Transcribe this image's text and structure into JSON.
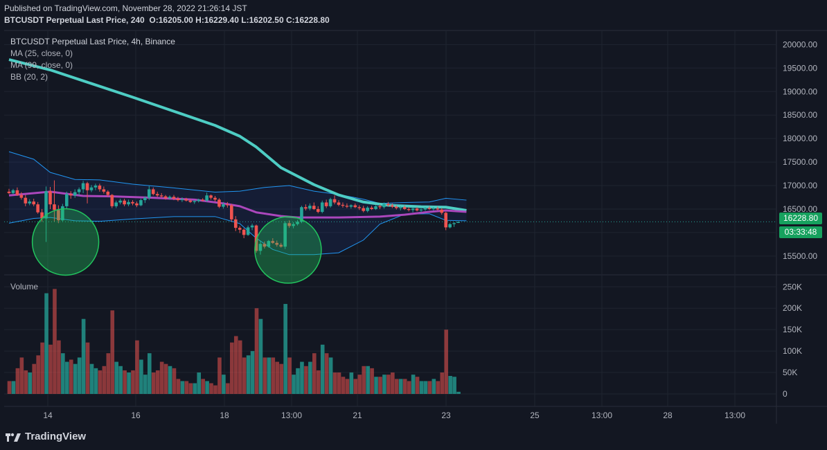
{
  "header": {
    "published": "Published on TradingView.com, November 28, 2022 21:26:14 JST",
    "symbol": "BTCUSDT Perpetual Last Price, 240",
    "o_label": "O:",
    "o_value": "16205.00",
    "h_label": "H:",
    "h_value": "16229.40",
    "l_label": "L:",
    "l_value": "16202.50",
    "c_label": "C:",
    "c_value": "16228.80"
  },
  "legend": {
    "title": "BTCUSDT Perpetual Last Price, 4h, Binance",
    "ma25": "MA (25, close, 0)",
    "ma99": "MA (99, close, 0)",
    "bb": "BB (20, 2)",
    "volume": "Volume"
  },
  "price_tags": {
    "last_price": "16228.80",
    "countdown": "03:33:48"
  },
  "brand": "TradingView",
  "colors": {
    "background": "#131722",
    "up": "#26a69a",
    "down": "#ef5350",
    "ma25": "#ab47bc",
    "ma99": "#4ecdc4",
    "bb": "#2962ff",
    "circle": "#22c55e",
    "grid": "#1f2430"
  },
  "chart_data": {
    "type": "candlestick",
    "x_tick_labels": [
      "14",
      "16",
      "18",
      "13:00",
      "21",
      "23",
      "25",
      "13:00",
      "28",
      "13:00"
    ],
    "price_axis": {
      "ticks": [
        15500,
        16000,
        16500,
        17000,
        17500,
        18000,
        18500,
        19000,
        19500,
        20000
      ],
      "ylim": [
        15100,
        20300
      ]
    },
    "volume_axis": {
      "ticks": [
        "0",
        "50K",
        "100K",
        "150K",
        "200K",
        "250K"
      ],
      "ylim": [
        0,
        265000
      ]
    },
    "candles": [
      {
        "o": 16870,
        "h": 16930,
        "l": 16820,
        "c": 16840,
        "v": 30000
      },
      {
        "o": 16840,
        "h": 16930,
        "l": 16810,
        "c": 16900,
        "v": 30000
      },
      {
        "o": 16900,
        "h": 16960,
        "l": 16780,
        "c": 16800,
        "v": 60000
      },
      {
        "o": 16800,
        "h": 16860,
        "l": 16700,
        "c": 16740,
        "v": 85000
      },
      {
        "o": 16740,
        "h": 16800,
        "l": 16560,
        "c": 16620,
        "v": 55000
      },
      {
        "o": 16620,
        "h": 16710,
        "l": 16580,
        "c": 16660,
        "v": 50000
      },
      {
        "o": 16660,
        "h": 16720,
        "l": 16560,
        "c": 16600,
        "v": 70000
      },
      {
        "o": 16600,
        "h": 16650,
        "l": 16400,
        "c": 16430,
        "v": 90000
      },
      {
        "o": 16430,
        "h": 16500,
        "l": 16230,
        "c": 16300,
        "v": 120000
      },
      {
        "o": 16300,
        "h": 16980,
        "l": 15800,
        "c": 16880,
        "v": 235000
      },
      {
        "o": 16880,
        "h": 16970,
        "l": 16500,
        "c": 16600,
        "v": 115000
      },
      {
        "o": 16600,
        "h": 17110,
        "l": 16230,
        "c": 16480,
        "v": 245000
      },
      {
        "o": 16480,
        "h": 16580,
        "l": 16200,
        "c": 16260,
        "v": 125000
      },
      {
        "o": 16260,
        "h": 16610,
        "l": 16240,
        "c": 16560,
        "v": 95000
      },
      {
        "o": 16560,
        "h": 16870,
        "l": 16500,
        "c": 16820,
        "v": 75000
      },
      {
        "o": 16820,
        "h": 16880,
        "l": 16720,
        "c": 16790,
        "v": 80000
      },
      {
        "o": 16790,
        "h": 16920,
        "l": 16740,
        "c": 16860,
        "v": 70000
      },
      {
        "o": 16860,
        "h": 16960,
        "l": 16790,
        "c": 16920,
        "v": 85000
      },
      {
        "o": 16920,
        "h": 17100,
        "l": 16840,
        "c": 17050,
        "v": 175000
      },
      {
        "o": 17050,
        "h": 17080,
        "l": 16620,
        "c": 16900,
        "v": 120000
      },
      {
        "o": 16900,
        "h": 17010,
        "l": 16860,
        "c": 16960,
        "v": 70000
      },
      {
        "o": 16960,
        "h": 17040,
        "l": 16900,
        "c": 17000,
        "v": 60000
      },
      {
        "o": 17000,
        "h": 17040,
        "l": 16870,
        "c": 16920,
        "v": 55000
      },
      {
        "o": 16920,
        "h": 16980,
        "l": 16830,
        "c": 16870,
        "v": 65000
      },
      {
        "o": 16870,
        "h": 16900,
        "l": 16760,
        "c": 16800,
        "v": 95000
      },
      {
        "o": 16800,
        "h": 16820,
        "l": 16520,
        "c": 16560,
        "v": 195000
      },
      {
        "o": 16560,
        "h": 16680,
        "l": 16520,
        "c": 16640,
        "v": 75000
      },
      {
        "o": 16640,
        "h": 16720,
        "l": 16600,
        "c": 16680,
        "v": 65000
      },
      {
        "o": 16680,
        "h": 16720,
        "l": 16560,
        "c": 16600,
        "v": 55000
      },
      {
        "o": 16600,
        "h": 16700,
        "l": 16560,
        "c": 16650,
        "v": 50000
      },
      {
        "o": 16650,
        "h": 16690,
        "l": 16580,
        "c": 16620,
        "v": 55000
      },
      {
        "o": 16620,
        "h": 16660,
        "l": 16540,
        "c": 16580,
        "v": 125000
      },
      {
        "o": 16580,
        "h": 16720,
        "l": 16560,
        "c": 16690,
        "v": 80000
      },
      {
        "o": 16690,
        "h": 16770,
        "l": 16630,
        "c": 16740,
        "v": 45000
      },
      {
        "o": 16740,
        "h": 16990,
        "l": 16690,
        "c": 16920,
        "v": 95000
      },
      {
        "o": 16920,
        "h": 16960,
        "l": 16790,
        "c": 16820,
        "v": 50000
      },
      {
        "o": 16820,
        "h": 16870,
        "l": 16760,
        "c": 16790,
        "v": 55000
      },
      {
        "o": 16790,
        "h": 16840,
        "l": 16740,
        "c": 16770,
        "v": 75000
      },
      {
        "o": 16770,
        "h": 16800,
        "l": 16700,
        "c": 16730,
        "v": 70000
      },
      {
        "o": 16730,
        "h": 16790,
        "l": 16700,
        "c": 16760,
        "v": 65000
      },
      {
        "o": 16760,
        "h": 16800,
        "l": 16690,
        "c": 16720,
        "v": 60000
      },
      {
        "o": 16720,
        "h": 16760,
        "l": 16660,
        "c": 16690,
        "v": 35000
      },
      {
        "o": 16690,
        "h": 16750,
        "l": 16650,
        "c": 16710,
        "v": 30000
      },
      {
        "o": 16710,
        "h": 16740,
        "l": 16660,
        "c": 16680,
        "v": 30000
      },
      {
        "o": 16680,
        "h": 16710,
        "l": 16630,
        "c": 16650,
        "v": 25000
      },
      {
        "o": 16650,
        "h": 16690,
        "l": 16610,
        "c": 16670,
        "v": 25000
      },
      {
        "o": 16670,
        "h": 16720,
        "l": 16640,
        "c": 16700,
        "v": 50000
      },
      {
        "o": 16700,
        "h": 16730,
        "l": 16660,
        "c": 16680,
        "v": 35000
      },
      {
        "o": 16680,
        "h": 16850,
        "l": 16650,
        "c": 16790,
        "v": 30000
      },
      {
        "o": 16790,
        "h": 16810,
        "l": 16700,
        "c": 16740,
        "v": 25000
      },
      {
        "o": 16740,
        "h": 16780,
        "l": 16660,
        "c": 16700,
        "v": 20000
      },
      {
        "o": 16700,
        "h": 16730,
        "l": 16520,
        "c": 16550,
        "v": 85000
      },
      {
        "o": 16550,
        "h": 16650,
        "l": 16510,
        "c": 16600,
        "v": 45000
      },
      {
        "o": 16600,
        "h": 16650,
        "l": 16530,
        "c": 16580,
        "v": 25000
      },
      {
        "o": 16580,
        "h": 16610,
        "l": 16230,
        "c": 16280,
        "v": 120000
      },
      {
        "o": 16280,
        "h": 16350,
        "l": 16030,
        "c": 16100,
        "v": 135000
      },
      {
        "o": 16100,
        "h": 16140,
        "l": 15990,
        "c": 16060,
        "v": 125000
      },
      {
        "o": 16060,
        "h": 16090,
        "l": 15880,
        "c": 15950,
        "v": 85000
      },
      {
        "o": 15950,
        "h": 16150,
        "l": 15930,
        "c": 16110,
        "v": 90000
      },
      {
        "o": 16110,
        "h": 16190,
        "l": 16050,
        "c": 16150,
        "v": 100000
      },
      {
        "o": 16150,
        "h": 16170,
        "l": 15570,
        "c": 15610,
        "v": 200000
      },
      {
        "o": 15610,
        "h": 15830,
        "l": 15530,
        "c": 15760,
        "v": 175000
      },
      {
        "o": 15760,
        "h": 15810,
        "l": 15660,
        "c": 15700,
        "v": 85000
      },
      {
        "o": 15700,
        "h": 15840,
        "l": 15680,
        "c": 15820,
        "v": 85000
      },
      {
        "o": 15820,
        "h": 15880,
        "l": 15760,
        "c": 15780,
        "v": 85000
      },
      {
        "o": 15780,
        "h": 15830,
        "l": 15700,
        "c": 15740,
        "v": 75000
      },
      {
        "o": 15740,
        "h": 15780,
        "l": 15680,
        "c": 15700,
        "v": 70000
      },
      {
        "o": 15700,
        "h": 16240,
        "l": 15650,
        "c": 16200,
        "v": 210000
      },
      {
        "o": 16200,
        "h": 16260,
        "l": 16100,
        "c": 16140,
        "v": 85000
      },
      {
        "o": 16140,
        "h": 16220,
        "l": 16090,
        "c": 16180,
        "v": 45000
      },
      {
        "o": 16180,
        "h": 16270,
        "l": 16150,
        "c": 16230,
        "v": 60000
      },
      {
        "o": 16230,
        "h": 16570,
        "l": 16200,
        "c": 16540,
        "v": 75000
      },
      {
        "o": 16540,
        "h": 16600,
        "l": 16470,
        "c": 16510,
        "v": 65000
      },
      {
        "o": 16510,
        "h": 16620,
        "l": 16470,
        "c": 16570,
        "v": 75000
      },
      {
        "o": 16570,
        "h": 16640,
        "l": 16480,
        "c": 16500,
        "v": 95000
      },
      {
        "o": 16500,
        "h": 16560,
        "l": 16410,
        "c": 16440,
        "v": 55000
      },
      {
        "o": 16440,
        "h": 16680,
        "l": 16410,
        "c": 16640,
        "v": 115000
      },
      {
        "o": 16640,
        "h": 16700,
        "l": 16520,
        "c": 16560,
        "v": 95000
      },
      {
        "o": 16560,
        "h": 16740,
        "l": 16530,
        "c": 16710,
        "v": 85000
      },
      {
        "o": 16710,
        "h": 16790,
        "l": 16600,
        "c": 16640,
        "v": 50000
      },
      {
        "o": 16640,
        "h": 16690,
        "l": 16560,
        "c": 16590,
        "v": 50000
      },
      {
        "o": 16590,
        "h": 16640,
        "l": 16530,
        "c": 16570,
        "v": 40000
      },
      {
        "o": 16570,
        "h": 16620,
        "l": 16520,
        "c": 16550,
        "v": 35000
      },
      {
        "o": 16550,
        "h": 16600,
        "l": 16510,
        "c": 16580,
        "v": 50000
      },
      {
        "o": 16580,
        "h": 16620,
        "l": 16520,
        "c": 16540,
        "v": 35000
      },
      {
        "o": 16540,
        "h": 16580,
        "l": 16480,
        "c": 16520,
        "v": 45000
      },
      {
        "o": 16520,
        "h": 16570,
        "l": 16430,
        "c": 16460,
        "v": 65000
      },
      {
        "o": 16460,
        "h": 16560,
        "l": 16430,
        "c": 16530,
        "v": 65000
      },
      {
        "o": 16530,
        "h": 16570,
        "l": 16480,
        "c": 16500,
        "v": 60000
      },
      {
        "o": 16500,
        "h": 16580,
        "l": 16480,
        "c": 16560,
        "v": 40000
      },
      {
        "o": 16560,
        "h": 16600,
        "l": 16500,
        "c": 16540,
        "v": 40000
      },
      {
        "o": 16540,
        "h": 16640,
        "l": 16510,
        "c": 16610,
        "v": 45000
      },
      {
        "o": 16610,
        "h": 16650,
        "l": 16550,
        "c": 16580,
        "v": 45000
      },
      {
        "o": 16580,
        "h": 16620,
        "l": 16520,
        "c": 16550,
        "v": 50000
      },
      {
        "o": 16550,
        "h": 16580,
        "l": 16490,
        "c": 16520,
        "v": 35000
      },
      {
        "o": 16520,
        "h": 16560,
        "l": 16470,
        "c": 16540,
        "v": 35000
      },
      {
        "o": 16540,
        "h": 16580,
        "l": 16480,
        "c": 16500,
        "v": 35000
      },
      {
        "o": 16500,
        "h": 16540,
        "l": 16450,
        "c": 16480,
        "v": 30000
      },
      {
        "o": 16480,
        "h": 16530,
        "l": 16430,
        "c": 16510,
        "v": 45000
      },
      {
        "o": 16510,
        "h": 16540,
        "l": 16450,
        "c": 16470,
        "v": 40000
      },
      {
        "o": 16470,
        "h": 16510,
        "l": 16430,
        "c": 16490,
        "v": 30000
      },
      {
        "o": 16490,
        "h": 16540,
        "l": 16460,
        "c": 16520,
        "v": 30000
      },
      {
        "o": 16520,
        "h": 16560,
        "l": 16480,
        "c": 16500,
        "v": 30000
      },
      {
        "o": 16500,
        "h": 16540,
        "l": 16470,
        "c": 16510,
        "v": 35000
      },
      {
        "o": 16510,
        "h": 16550,
        "l": 16470,
        "c": 16490,
        "v": 30000
      },
      {
        "o": 16490,
        "h": 16520,
        "l": 16380,
        "c": 16420,
        "v": 50000
      },
      {
        "o": 16420,
        "h": 16440,
        "l": 16050,
        "c": 16110,
        "v": 150000
      },
      {
        "o": 16110,
        "h": 16200,
        "l": 16090,
        "c": 16180,
        "v": 42000
      },
      {
        "o": 16180,
        "h": 16220,
        "l": 16120,
        "c": 16200,
        "v": 40000
      },
      {
        "o": 16205,
        "h": 16229.4,
        "l": 16202.5,
        "c": 16228.8,
        "v": 5000
      }
    ],
    "ma25": [
      [
        0,
        16790
      ],
      [
        10,
        16870
      ],
      [
        18,
        16780
      ],
      [
        25,
        16770
      ],
      [
        35,
        16740
      ],
      [
        45,
        16700
      ],
      [
        52,
        16620
      ],
      [
        56,
        16560
      ],
      [
        60,
        16430
      ],
      [
        66,
        16350
      ],
      [
        70,
        16320
      ],
      [
        80,
        16320
      ],
      [
        90,
        16340
      ],
      [
        96,
        16380
      ],
      [
        102,
        16440
      ],
      [
        106,
        16470
      ],
      [
        111,
        16440
      ]
    ],
    "ma99": [
      [
        0,
        19680
      ],
      [
        10,
        19460
      ],
      [
        20,
        19170
      ],
      [
        30,
        18880
      ],
      [
        40,
        18580
      ],
      [
        50,
        18280
      ],
      [
        56,
        18050
      ],
      [
        60,
        17820
      ],
      [
        66,
        17380
      ],
      [
        74,
        17020
      ],
      [
        80,
        16800
      ],
      [
        86,
        16650
      ],
      [
        92,
        16580
      ],
      [
        100,
        16550
      ],
      [
        106,
        16540
      ],
      [
        111,
        16470
      ]
    ],
    "bb_upper": [
      [
        0,
        17720
      ],
      [
        6,
        17560
      ],
      [
        10,
        17280
      ],
      [
        16,
        17130
      ],
      [
        22,
        17120
      ],
      [
        30,
        17030
      ],
      [
        40,
        16950
      ],
      [
        50,
        16860
      ],
      [
        56,
        16880
      ],
      [
        62,
        16960
      ],
      [
        68,
        17000
      ],
      [
        74,
        16880
      ],
      [
        80,
        16810
      ],
      [
        86,
        16710
      ],
      [
        90,
        16620
      ],
      [
        96,
        16640
      ],
      [
        102,
        16650
      ],
      [
        106,
        16730
      ],
      [
        111,
        16690
      ]
    ],
    "bb_lower": [
      [
        0,
        16200
      ],
      [
        6,
        16300
      ],
      [
        10,
        16320
      ],
      [
        16,
        16250
      ],
      [
        22,
        16240
      ],
      [
        30,
        16290
      ],
      [
        40,
        16340
      ],
      [
        50,
        16340
      ],
      [
        56,
        16190
      ],
      [
        60,
        15880
      ],
      [
        64,
        15640
      ],
      [
        68,
        15530
      ],
      [
        74,
        15530
      ],
      [
        80,
        15570
      ],
      [
        86,
        15840
      ],
      [
        90,
        16180
      ],
      [
        96,
        16390
      ],
      [
        102,
        16400
      ],
      [
        106,
        16260
      ],
      [
        111,
        16250
      ]
    ],
    "annotations": [
      {
        "type": "circle",
        "candle": 8,
        "price": 15800,
        "label": ""
      },
      {
        "type": "circle",
        "candle": 62,
        "price": 15630,
        "label": ""
      }
    ],
    "last_price": 16228.8,
    "grid": true,
    "legend_position": "top-left"
  }
}
